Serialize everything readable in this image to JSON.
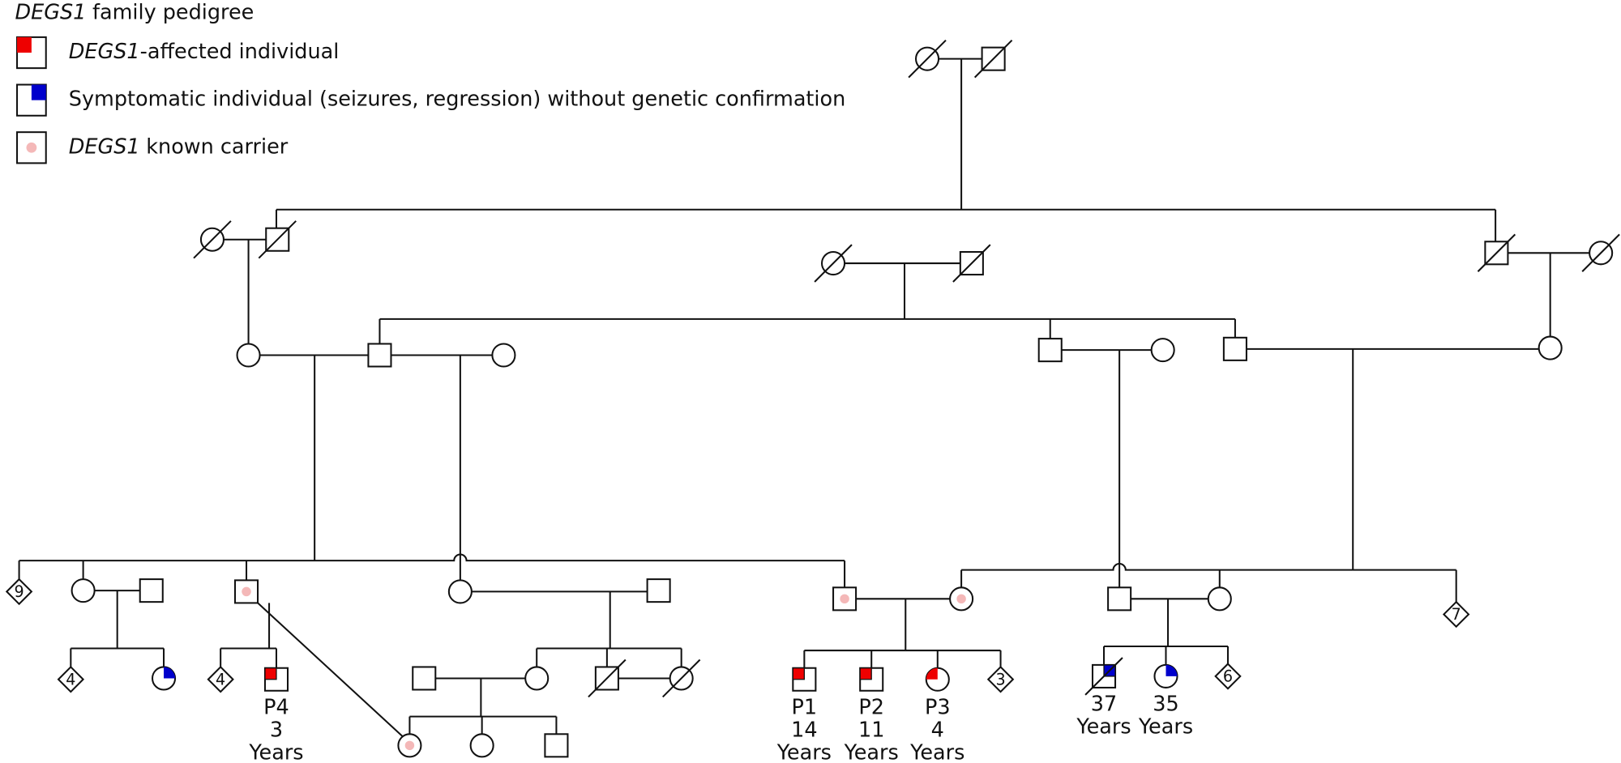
{
  "header": {
    "title_gene": "DEGS1",
    "title_rest": "family pedigree"
  },
  "legend": [
    {
      "gene": "DEGS1",
      "text": "-affected individual"
    },
    {
      "text": "Symptomatic individual (seizures, regression) without genetic confirmation"
    },
    {
      "gene": "DEGS1",
      "text": "known carrier"
    }
  ],
  "sibship_counts": [
    "9",
    "4",
    "4",
    "3",
    "6",
    "7"
  ],
  "patients": [
    [
      "P4",
      "3",
      "Years"
    ],
    [
      "P1",
      "14",
      "Years"
    ],
    [
      "P2",
      "11",
      "Years"
    ],
    [
      "P3",
      "4",
      "Years"
    ],
    [
      "37",
      "Years"
    ],
    [
      "35",
      "Years"
    ]
  ]
}
